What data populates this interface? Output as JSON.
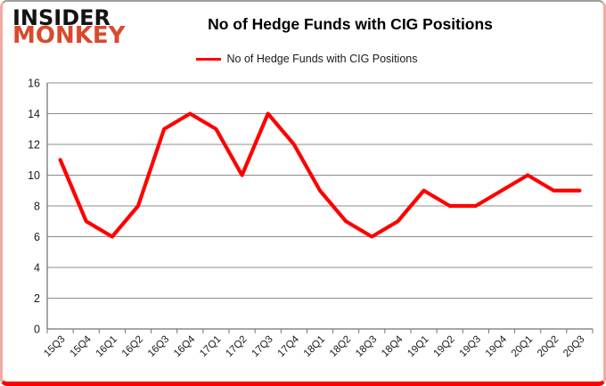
{
  "header": {
    "logo_line1": "INSIDER",
    "logo_line2": "MONKEY",
    "title": "No of Hedge Funds with CIG Positions",
    "legend_label": "No of Hedge Funds with CIG Positions"
  },
  "colors": {
    "series_red": "#ff0000",
    "grid_gray": "#8c8c8c",
    "axis_gray": "#757575",
    "label_black": "#1a1a1a",
    "logo_black": "#141414",
    "logo_red": "#d94a2c",
    "card_border_top": "#9e9e9e",
    "card_border_side": "#f2aba3",
    "card_border_bottom": "#ff0000"
  },
  "chart_data": {
    "type": "line",
    "title": "No of Hedge Funds with CIG Positions",
    "categories": [
      "15Q3",
      "15Q4",
      "16Q1",
      "16Q2",
      "16Q3",
      "16Q4",
      "17Q1",
      "17Q2",
      "17Q3",
      "17Q4",
      "18Q1",
      "18Q2",
      "18Q3",
      "18Q4",
      "19Q1",
      "19Q2",
      "19Q3",
      "19Q4",
      "20Q1",
      "20Q2",
      "20Q3"
    ],
    "series": [
      {
        "name": "No of Hedge Funds with CIG Positions",
        "color": "#ff0000",
        "values": [
          11,
          7,
          6,
          8,
          13,
          14,
          13,
          10,
          14,
          12,
          9,
          7,
          6,
          7,
          9,
          8,
          8,
          9,
          10,
          9,
          9
        ]
      }
    ],
    "xlabel": "",
    "ylabel": "",
    "ylim": [
      0,
      16
    ],
    "ytick_step": 2,
    "grid": true,
    "legend_position": "top-center"
  }
}
